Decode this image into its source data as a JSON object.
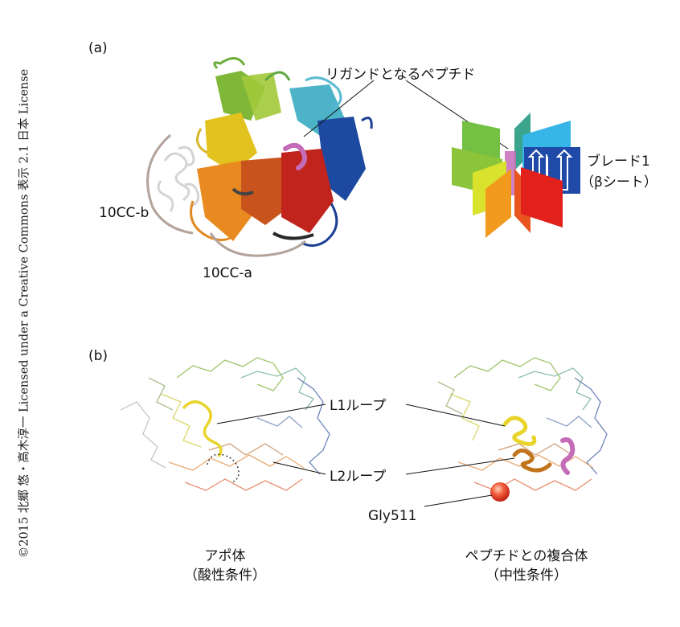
{
  "copyright": "©2015 北郷 悠・高木淳一 Licensed under a Creative Commons 表示 2.1 日本 License",
  "panel_a": {
    "label": "(a)",
    "ligand_label": "リガンドとなるペプチド",
    "domain_b": "10CC-b",
    "domain_a": "10CC-a",
    "blade_label_1": "ブレード1",
    "blade_label_2": "（βシート）"
  },
  "panel_b": {
    "label": "(b)",
    "l1_loop": "L1ループ",
    "l2_loop": "L2ループ",
    "gly": "Gly511",
    "apo_title": "アポ体",
    "apo_sub": "（酸性条件）",
    "complex_title": "ペプチドとの複合体",
    "complex_sub": "（中性条件）"
  },
  "colors": {
    "blade1": "#1f4aa8",
    "blade2": "#35b6e6",
    "blade3": "#3aa58c",
    "blade4": "#74c043",
    "blade5": "#8cc43a",
    "blade6": "#d9e22c",
    "blade7": "#f19a1e",
    "blade8": "#e9541f",
    "blade9": "#e2211c",
    "ligand": "#c56cb8",
    "bracket": "#b3a39a"
  }
}
